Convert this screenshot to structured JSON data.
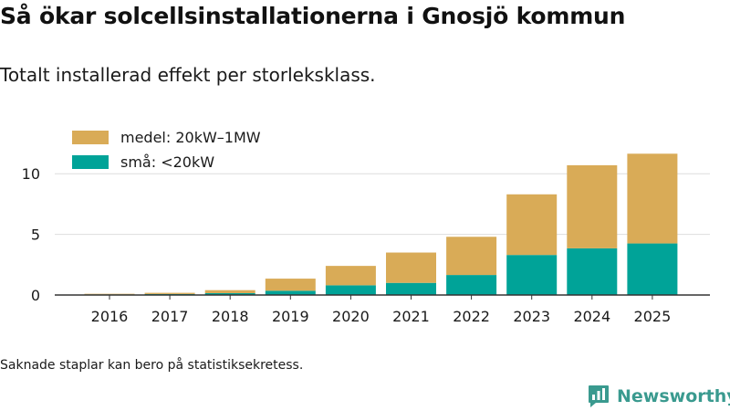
{
  "header": {
    "title": "Så ökar solcellsinstallationerna i Gnosjö kommun",
    "subtitle": "Totalt installerad effekt per storleksklass."
  },
  "footer": {
    "note": "Saknade staplar kan bero på statistiksekretess.",
    "brand": "Newsworthy"
  },
  "colors": {
    "medel": "#d9ab57",
    "sma": "#00a398",
    "grid": "#dddddd",
    "axis": "#333333",
    "brand": "#3a9a8f"
  },
  "chart_data": {
    "type": "bar",
    "stacked": true,
    "categories": [
      "2016",
      "2017",
      "2018",
      "2019",
      "2020",
      "2021",
      "2022",
      "2023",
      "2024",
      "2025"
    ],
    "series": [
      {
        "name": "små: <20kW",
        "key": "sma",
        "values": [
          0.05,
          0.08,
          0.15,
          0.35,
          0.8,
          1.0,
          1.65,
          3.3,
          3.85,
          4.25
        ]
      },
      {
        "name": "medel: 20kW–1MW",
        "key": "medel",
        "values": [
          0.05,
          0.1,
          0.25,
          1.0,
          1.6,
          2.5,
          3.15,
          5.0,
          6.85,
          7.4
        ]
      }
    ],
    "legend": [
      {
        "label": "medel: 20kW–1MW",
        "key": "medel"
      },
      {
        "label": "små: <20kW",
        "key": "sma"
      }
    ],
    "yticks": [
      "0",
      "5",
      "10"
    ],
    "ytick_values": [
      0,
      5,
      10
    ],
    "ylim": [
      0,
      12.5
    ],
    "legend_position": "top-left",
    "title": "Så ökar solcellsinstallationerna i Gnosjö kommun",
    "xlabel": "",
    "ylabel": ""
  }
}
